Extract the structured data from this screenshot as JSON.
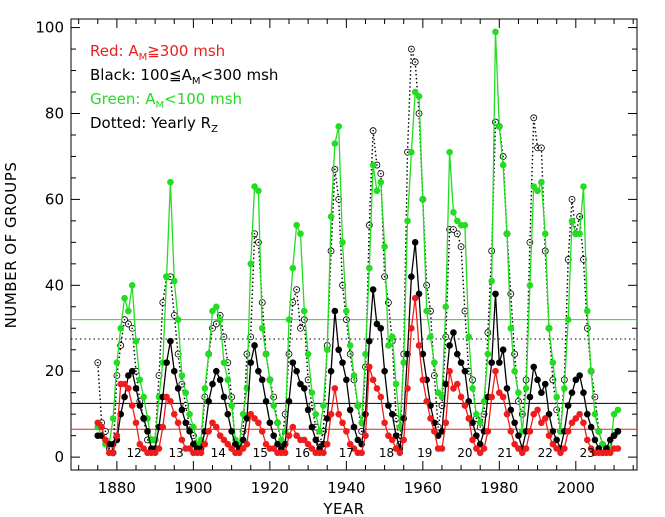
{
  "chart_data": {
    "type": "line",
    "title": "",
    "xlabel": "YEAR",
    "ylabel": "NUMBER OF GROUPS",
    "xlim": [
      1868,
      2016
    ],
    "ylim": [
      -3,
      102
    ],
    "x_ticks": [
      1880,
      1900,
      1920,
      1940,
      1960,
      1980,
      2000
    ],
    "y_ticks": [
      0,
      20,
      40,
      60,
      80,
      100
    ],
    "grid": false,
    "legend_placement": "top-left",
    "colors": {
      "red": "#ee1c1c",
      "black": "#000000",
      "green": "#22dd22",
      "dotted": "#000000"
    },
    "legend": [
      {
        "color": "#ee1c1c",
        "main": "Red: A",
        "sub": "M",
        "rest": "≧300 msh"
      },
      {
        "color": "#000000",
        "main": "Black: 100≦A",
        "sub": "M",
        "rest": "<300 msh"
      },
      {
        "color": "#22dd22",
        "main": "Green: A",
        "sub": "M",
        "rest": "<100 msh"
      },
      {
        "color": "#000000",
        "main": "Dotted: Yearly R",
        "sub": "Z",
        "rest": ""
      }
    ],
    "cycle_labels": [
      {
        "x": 1884.5,
        "y": 1,
        "text": "12"
      },
      {
        "x": 1895.5,
        "y": 1,
        "text": "13"
      },
      {
        "x": 1906.5,
        "y": 1,
        "text": "14"
      },
      {
        "x": 1917.5,
        "y": 1,
        "text": "15"
      },
      {
        "x": 1928.5,
        "y": 1,
        "text": "16"
      },
      {
        "x": 1940,
        "y": 1,
        "text": "17"
      },
      {
        "x": 1950.5,
        "y": 1,
        "text": "18"
      },
      {
        "x": 1960.5,
        "y": 1,
        "text": "19"
      },
      {
        "x": 1971,
        "y": 1,
        "text": "20"
      },
      {
        "x": 1981.5,
        "y": 1,
        "text": "21"
      },
      {
        "x": 1992,
        "y": 1,
        "text": "22"
      },
      {
        "x": 2003,
        "y": 1,
        "text": "23"
      }
    ],
    "horizontal_lines": [
      {
        "series": "Green average",
        "color": "#22dd22",
        "y": 32,
        "dashed": false
      },
      {
        "series": "Dotted average",
        "color": "#000000",
        "y": 27.5,
        "dashed": true
      },
      {
        "series": "Black average",
        "color": "#000000",
        "y": 12.5,
        "dashed": false
      },
      {
        "series": "Red average",
        "color": "#ee1c1c",
        "y": 6.5,
        "dashed": false
      }
    ],
    "series": [
      {
        "name": "Green: AM<100 msh",
        "color": "#22dd22",
        "style": "solid-filled",
        "x": [
          1875,
          1876,
          1877,
          1878,
          1879,
          1880,
          1881,
          1882,
          1883,
          1884,
          1885,
          1886,
          1887,
          1888,
          1889,
          1890,
          1891,
          1892,
          1893,
          1894,
          1895,
          1896,
          1897,
          1898,
          1899,
          1900,
          1901,
          1902,
          1903,
          1904,
          1905,
          1906,
          1907,
          1908,
          1909,
          1910,
          1911,
          1912,
          1913,
          1914,
          1915,
          1916,
          1917,
          1918,
          1919,
          1920,
          1921,
          1922,
          1923,
          1924,
          1925,
          1926,
          1927,
          1928,
          1929,
          1930,
          1931,
          1932,
          1933,
          1934,
          1935,
          1936,
          1937,
          1938,
          1939,
          1940,
          1941,
          1942,
          1943,
          1944,
          1945,
          1946,
          1947,
          1948,
          1949,
          1950,
          1951,
          1952,
          1953,
          1954,
          1955,
          1956,
          1957,
          1958,
          1959,
          1960,
          1961,
          1962,
          1963,
          1964,
          1965,
          1966,
          1967,
          1968,
          1969,
          1970,
          1971,
          1972,
          1973,
          1974,
          1975,
          1976,
          1977,
          1978,
          1979,
          1980,
          1981,
          1982,
          1983,
          1984,
          1985,
          1986,
          1987,
          1988,
          1989,
          1990,
          1991,
          1992,
          1993,
          1994,
          1995,
          1996,
          1997,
          1998,
          1999,
          2000,
          2001,
          2002,
          2003,
          2004,
          2005,
          2006,
          2007,
          2008,
          2009,
          2010,
          2011
        ],
        "values": [
          7,
          5,
          3,
          3,
          9,
          22,
          30,
          37,
          34,
          40,
          27,
          18,
          14,
          9,
          4,
          4,
          14,
          22,
          42,
          64,
          41,
          32,
          19,
          15,
          10,
          7,
          3,
          4,
          16,
          24,
          34,
          35,
          32,
          22,
          18,
          12,
          4,
          3,
          10,
          16,
          45,
          63,
          62,
          30,
          24,
          18,
          12,
          8,
          4,
          6,
          32,
          44,
          54,
          52,
          34,
          24,
          15,
          10,
          6,
          12,
          25,
          56,
          73,
          77,
          50,
          34,
          26,
          19,
          12,
          8,
          24,
          44,
          68,
          62,
          64,
          49,
          26,
          28,
          17,
          7,
          22,
          55,
          71,
          85,
          84,
          60,
          34,
          28,
          22,
          15,
          14,
          35,
          71,
          57,
          55,
          54,
          54,
          28,
          16,
          10,
          8,
          13,
          24,
          41,
          99,
          77,
          68,
          52,
          30,
          20,
          15,
          6,
          16,
          40,
          63,
          62,
          64,
          52,
          30,
          22,
          14,
          6,
          16,
          32,
          55,
          52,
          52,
          63,
          34,
          20,
          10,
          6,
          3,
          2,
          2,
          10,
          11
        ]
      },
      {
        "name": "Black: 100≦AM<300 msh",
        "color": "#000000",
        "style": "solid-filled",
        "x": [
          1875,
          1876,
          1877,
          1878,
          1879,
          1880,
          1881,
          1882,
          1883,
          1884,
          1885,
          1886,
          1887,
          1888,
          1889,
          1890,
          1891,
          1892,
          1893,
          1894,
          1895,
          1896,
          1897,
          1898,
          1899,
          1900,
          1901,
          1902,
          1903,
          1904,
          1905,
          1906,
          1907,
          1908,
          1909,
          1910,
          1911,
          1912,
          1913,
          1914,
          1915,
          1916,
          1917,
          1918,
          1919,
          1920,
          1921,
          1922,
          1923,
          1924,
          1925,
          1926,
          1927,
          1928,
          1929,
          1930,
          1931,
          1932,
          1933,
          1934,
          1935,
          1936,
          1937,
          1938,
          1939,
          1940,
          1941,
          1942,
          1943,
          1944,
          1945,
          1946,
          1947,
          1948,
          1949,
          1950,
          1951,
          1952,
          1953,
          1954,
          1955,
          1956,
          1957,
          1958,
          1959,
          1960,
          1961,
          1962,
          1963,
          1964,
          1965,
          1966,
          1967,
          1968,
          1969,
          1970,
          1971,
          1972,
          1973,
          1974,
          1975,
          1976,
          1977,
          1978,
          1979,
          1980,
          1981,
          1982,
          1983,
          1984,
          1985,
          1986,
          1987,
          1988,
          1989,
          1990,
          1991,
          1992,
          1993,
          1994,
          1995,
          1996,
          1997,
          1998,
          1999,
          2000,
          2001,
          2002,
          2003,
          2004,
          2005,
          2006,
          2007,
          2008,
          2009,
          2010,
          2011
        ],
        "values": [
          5,
          5,
          4,
          3,
          3,
          4,
          10,
          14,
          19,
          20,
          16,
          12,
          9,
          6,
          2,
          2,
          7,
          14,
          22,
          27,
          20,
          16,
          11,
          8,
          6,
          3,
          2,
          2,
          6,
          13,
          17,
          20,
          18,
          14,
          10,
          6,
          3,
          2,
          4,
          9,
          22,
          26,
          20,
          18,
          13,
          8,
          5,
          3,
          2,
          3,
          13,
          22,
          20,
          17,
          16,
          11,
          7,
          4,
          2,
          3,
          9,
          20,
          34,
          25,
          22,
          18,
          11,
          7,
          4,
          3,
          10,
          27,
          39,
          31,
          30,
          20,
          12,
          10,
          5,
          2,
          9,
          24,
          42,
          50,
          38,
          24,
          18,
          12,
          8,
          5,
          6,
          17,
          26,
          29,
          24,
          22,
          20,
          13,
          8,
          5,
          3,
          6,
          14,
          22,
          38,
          22,
          25,
          16,
          11,
          8,
          5,
          2,
          6,
          14,
          21,
          18,
          15,
          17,
          10,
          6,
          4,
          2,
          6,
          12,
          15,
          18,
          19,
          15,
          10,
          7,
          4,
          2,
          1,
          2,
          4,
          5,
          6
        ]
      },
      {
        "name": "Red: AM≧300 msh",
        "color": "#ee1c1c",
        "style": "solid-filled",
        "x": [
          1875,
          1876,
          1877,
          1878,
          1879,
          1880,
          1881,
          1882,
          1883,
          1884,
          1885,
          1886,
          1887,
          1888,
          1889,
          1890,
          1891,
          1892,
          1893,
          1894,
          1895,
          1896,
          1897,
          1898,
          1899,
          1900,
          1901,
          1902,
          1903,
          1904,
          1905,
          1906,
          1907,
          1908,
          1909,
          1910,
          1911,
          1912,
          1913,
          1914,
          1915,
          1916,
          1917,
          1918,
          1919,
          1920,
          1921,
          1922,
          1923,
          1924,
          1925,
          1926,
          1927,
          1928,
          1929,
          1930,
          1931,
          1932,
          1933,
          1934,
          1935,
          1936,
          1937,
          1938,
          1939,
          1940,
          1941,
          1942,
          1943,
          1944,
          1945,
          1946,
          1947,
          1948,
          1949,
          1950,
          1951,
          1952,
          1953,
          1954,
          1955,
          1956,
          1957,
          1958,
          1959,
          1960,
          1961,
          1962,
          1963,
          1964,
          1965,
          1966,
          1967,
          1968,
          1969,
          1970,
          1971,
          1972,
          1973,
          1974,
          1975,
          1976,
          1977,
          1978,
          1979,
          1980,
          1981,
          1982,
          1983,
          1984,
          1985,
          1986,
          1987,
          1988,
          1989,
          1990,
          1991,
          1992,
          1993,
          1994,
          1995,
          1996,
          1997,
          1998,
          1999,
          2000,
          2001,
          2002,
          2003,
          2004,
          2005,
          2006,
          2007,
          2008,
          2009,
          2010,
          2011
        ],
        "values": [
          8,
          7,
          4,
          1,
          1,
          5,
          17,
          17,
          16,
          12,
          8,
          3,
          2,
          1,
          1,
          1,
          2,
          7,
          14,
          13,
          10,
          8,
          4,
          2,
          2,
          1,
          1,
          1,
          3,
          6,
          8,
          7,
          5,
          4,
          3,
          2,
          1,
          1,
          2,
          3,
          10,
          9,
          8,
          6,
          3,
          2,
          2,
          1,
          1,
          1,
          5,
          7,
          5,
          4,
          4,
          3,
          2,
          1,
          1,
          1,
          3,
          10,
          16,
          10,
          8,
          6,
          3,
          2,
          1,
          1,
          5,
          21,
          18,
          16,
          14,
          8,
          5,
          4,
          2,
          1,
          4,
          16,
          30,
          37,
          26,
          18,
          13,
          9,
          6,
          2,
          2,
          8,
          20,
          16,
          17,
          14,
          12,
          9,
          4,
          2,
          1,
          2,
          6,
          14,
          20,
          15,
          14,
          10,
          6,
          3,
          2,
          1,
          2,
          6,
          10,
          11,
          8,
          9,
          5,
          3,
          2,
          1,
          2,
          6,
          8,
          9,
          10,
          8,
          4,
          2,
          1,
          1,
          1,
          1,
          1,
          2,
          2
        ]
      },
      {
        "name": "Dotted: Yearly RZ",
        "color": "#000000",
        "style": "dotted-open",
        "x": [
          1875,
          1876,
          1877,
          1878,
          1879,
          1880,
          1881,
          1882,
          1883,
          1884,
          1885,
          1886,
          1887,
          1888,
          1889,
          1890,
          1891,
          1892,
          1893,
          1894,
          1895,
          1896,
          1897,
          1898,
          1899,
          1900,
          1901,
          1902,
          1903,
          1904,
          1905,
          1906,
          1907,
          1908,
          1909,
          1910,
          1911,
          1912,
          1913,
          1914,
          1915,
          1916,
          1917,
          1918,
          1919,
          1920,
          1921,
          1922,
          1923,
          1924,
          1925,
          1926,
          1927,
          1928,
          1929,
          1930,
          1931,
          1932,
          1933,
          1934,
          1935,
          1936,
          1937,
          1938,
          1939,
          1940,
          1941,
          1942,
          1943,
          1944,
          1945,
          1946,
          1947,
          1948,
          1949,
          1950,
          1951,
          1952,
          1953,
          1954,
          1955,
          1956,
          1957,
          1958,
          1959,
          1960,
          1961,
          1962,
          1963,
          1964,
          1965,
          1966,
          1967,
          1968,
          1969,
          1970,
          1971,
          1972,
          1973,
          1974,
          1975,
          1976,
          1977,
          1978,
          1979,
          1980,
          1981,
          1982,
          1983,
          1984,
          1985,
          1986,
          1987,
          1988,
          1989,
          1990,
          1991,
          1992,
          1993,
          1994,
          1995,
          1996,
          1997,
          1998,
          1999,
          2000,
          2001,
          2002,
          2003,
          2004,
          2005,
          2006,
          2007,
          2008,
          2009,
          2010,
          2011
        ],
        "values": [
          22,
          8,
          6,
          2,
          1,
          19,
          26,
          32,
          31,
          30,
          20,
          13,
          9,
          4,
          4,
          4,
          19,
          36,
          42,
          42,
          33,
          24,
          17,
          12,
          7,
          5,
          2,
          3,
          14,
          24,
          30,
          31,
          33,
          28,
          22,
          14,
          3,
          2,
          6,
          24,
          28,
          52,
          50,
          36,
          24,
          18,
          14,
          8,
          3,
          10,
          24,
          36,
          39,
          30,
          32,
          18,
          12,
          7,
          3,
          6,
          26,
          48,
          67,
          60,
          40,
          32,
          24,
          18,
          12,
          6,
          21,
          54,
          76,
          68,
          66,
          42,
          36,
          27,
          9,
          3,
          24,
          71,
          95,
          92,
          80,
          60,
          40,
          34,
          19,
          7,
          12,
          28,
          53,
          53,
          52,
          49,
          34,
          20,
          18,
          9,
          7,
          10,
          29,
          48,
          78,
          77,
          70,
          52,
          38,
          24,
          13,
          10,
          18,
          50,
          79,
          72,
          72,
          48,
          30,
          18,
          11,
          6,
          18,
          46,
          60,
          52,
          56,
          46,
          30,
          20,
          14,
          6,
          3,
          2,
          2,
          5,
          6
        ]
      }
    ]
  }
}
